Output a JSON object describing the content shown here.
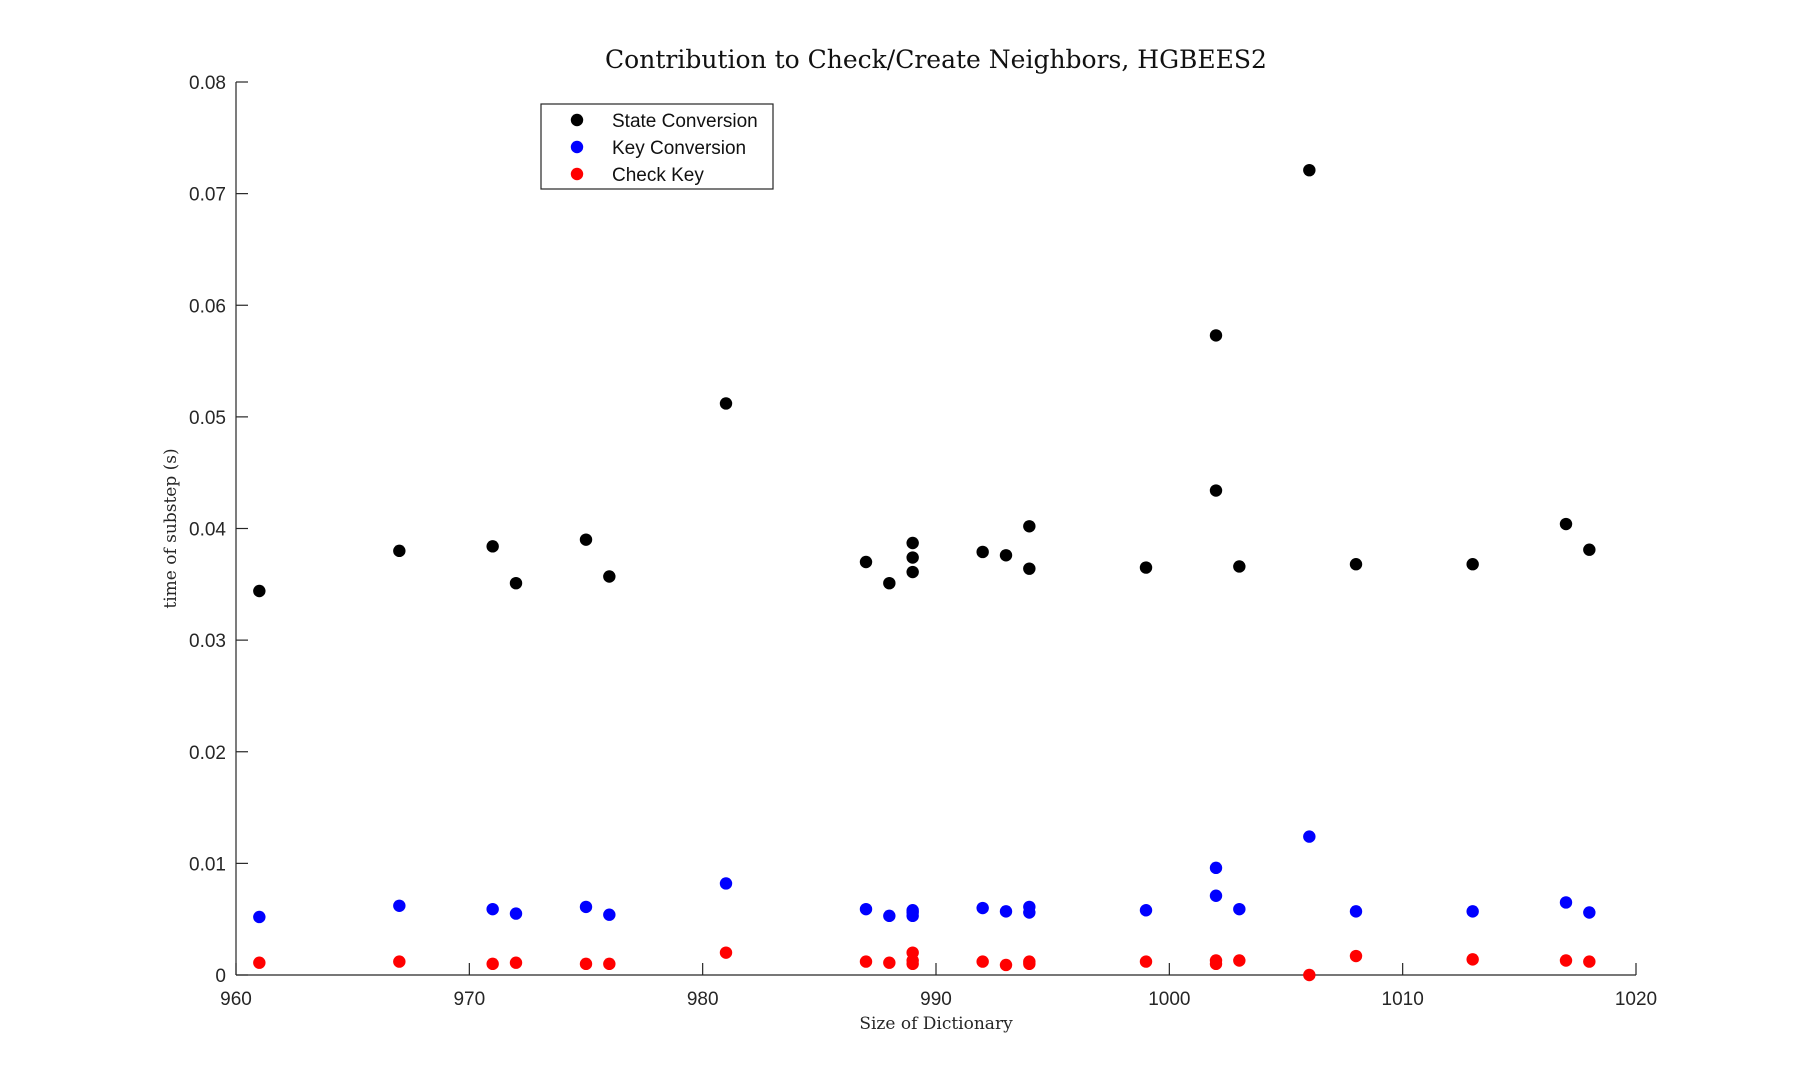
{
  "chart_data": {
    "type": "scatter",
    "title": "Contribution to Check/Create Neighbors, HGBEES2",
    "xlabel": "Size of Dictionary",
    "ylabel": "time of substep (s)",
    "xlim": [
      960,
      1020
    ],
    "ylim": [
      0,
      0.08
    ],
    "xticks": [
      960,
      970,
      980,
      990,
      1000,
      1010,
      1020
    ],
    "yticks": [
      0,
      0.01,
      0.02,
      0.03,
      0.04,
      0.05,
      0.06,
      0.07,
      0.08
    ],
    "xtick_labels": [
      "960",
      "970",
      "980",
      "990",
      "1000",
      "1010",
      "1020"
    ],
    "ytick_labels": [
      "0",
      "0.01",
      "0.02",
      "0.03",
      "0.04",
      "0.05",
      "0.06",
      "0.07",
      "0.08"
    ],
    "grid": false,
    "legend_position": "top-left",
    "series": [
      {
        "name": "State Conversion",
        "color": "#000000",
        "x": [
          961,
          967,
          971,
          972,
          975,
          976,
          981,
          987,
          988,
          989,
          989,
          989,
          992,
          993,
          994,
          994,
          999,
          1002,
          1002,
          1003,
          1006,
          1008,
          1013,
          1017,
          1018
        ],
        "y": [
          0.0344,
          0.038,
          0.0384,
          0.0351,
          0.039,
          0.0357,
          0.0512,
          0.037,
          0.0351,
          0.0387,
          0.0374,
          0.0361,
          0.0379,
          0.0376,
          0.0402,
          0.0364,
          0.0365,
          0.0573,
          0.0434,
          0.0366,
          0.0721,
          0.0368,
          0.0368,
          0.0404,
          0.0381
        ]
      },
      {
        "name": "Key Conversion",
        "color": "#0000ff",
        "x": [
          961,
          967,
          971,
          972,
          975,
          976,
          981,
          987,
          988,
          989,
          989,
          989,
          992,
          993,
          994,
          994,
          999,
          1002,
          1002,
          1003,
          1006,
          1008,
          1013,
          1017,
          1018
        ],
        "y": [
          0.0052,
          0.0062,
          0.0059,
          0.0055,
          0.0061,
          0.0054,
          0.0082,
          0.0059,
          0.0053,
          0.0058,
          0.0056,
          0.0053,
          0.006,
          0.0057,
          0.0061,
          0.0056,
          0.0058,
          0.0096,
          0.0071,
          0.0059,
          0.0124,
          0.0057,
          0.0057,
          0.0065,
          0.0056
        ]
      },
      {
        "name": "Check Key",
        "color": "#ff0000",
        "x": [
          961,
          967,
          971,
          972,
          975,
          976,
          981,
          987,
          988,
          989,
          989,
          989,
          992,
          993,
          994,
          994,
          999,
          1002,
          1002,
          1003,
          1006,
          1008,
          1013,
          1017,
          1018
        ],
        "y": [
          0.0011,
          0.0012,
          0.001,
          0.0011,
          0.001,
          0.001,
          0.002,
          0.0012,
          0.0011,
          0.002,
          0.0013,
          0.001,
          0.0012,
          0.0009,
          0.0012,
          0.001,
          0.0012,
          0.0013,
          0.001,
          0.0013,
          0.0,
          0.0017,
          0.0014,
          0.0013,
          0.0012
        ]
      }
    ]
  }
}
